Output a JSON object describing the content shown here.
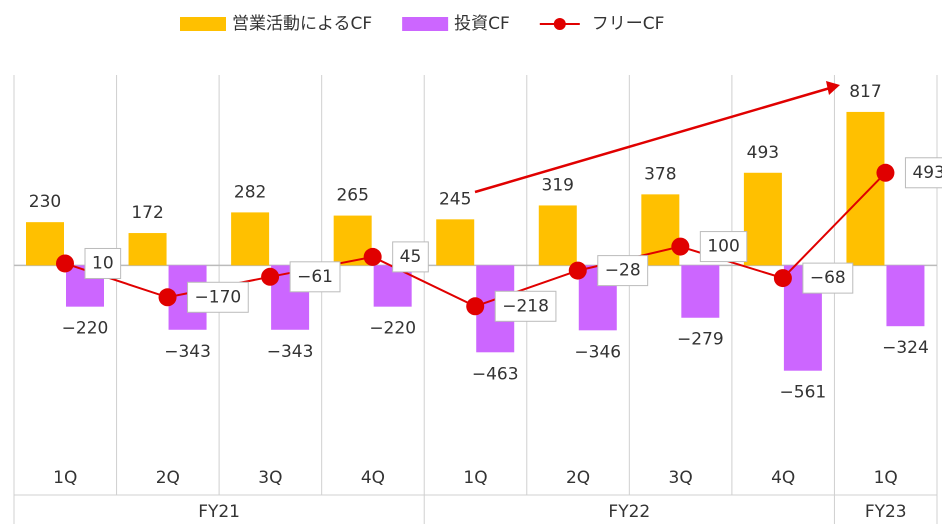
{
  "chart_data": {
    "type": "bar",
    "categories": [
      "1Q",
      "2Q",
      "3Q",
      "4Q",
      "1Q",
      "2Q",
      "3Q",
      "4Q",
      "1Q"
    ],
    "groups": [
      {
        "label": "FY21",
        "span": 4
      },
      {
        "label": "FY22",
        "span": 4
      },
      {
        "label": "FY23",
        "span": 1
      }
    ],
    "series": [
      {
        "name": "営業活動によるCF",
        "type": "bar",
        "color": "#FFC000",
        "values": [
          230,
          172,
          282,
          265,
          245,
          319,
          378,
          493,
          817
        ]
      },
      {
        "name": "投資CF",
        "type": "bar",
        "color": "#CC66FF",
        "values": [
          -220,
          -343,
          -343,
          -220,
          -463,
          -346,
          -279,
          -561,
          -324
        ],
        "value_labels": [
          "−220",
          "−343",
          "−343",
          "−220",
          "−463",
          "−346",
          "−279",
          "−561",
          "−324"
        ]
      },
      {
        "name": "フリーCF",
        "type": "line",
        "color": "#E00000",
        "values": [
          10,
          -170,
          -61,
          45,
          -218,
          -28,
          100,
          -68,
          493
        ],
        "value_labels": [
          "10",
          "−170",
          "−61",
          "45",
          "−218",
          "−28",
          "100",
          "−68",
          "493"
        ]
      }
    ],
    "ylim": [
      -930,
      1200
    ],
    "legend": "top"
  }
}
